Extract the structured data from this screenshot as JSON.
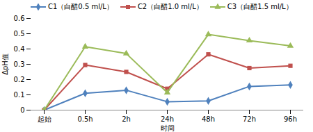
{
  "chart_data": {
    "type": "line",
    "x_label": "时间",
    "y_label": "ΔpH值",
    "categories": [
      "起始",
      "0.5h",
      "2h",
      "24h",
      "48h",
      "72h",
      "96h"
    ],
    "series": [
      {
        "name": "C1（白醋0.5 ml/L）",
        "color": "#4f81bd",
        "marker": "diamond",
        "values": [
          0,
          0.11,
          0.13,
          0.055,
          0.06,
          0.155,
          0.165
        ]
      },
      {
        "name": "C2（白醋1.0 ml/L）",
        "color": "#c0504d",
        "marker": "square",
        "values": [
          0,
          0.295,
          0.25,
          0.14,
          0.365,
          0.275,
          0.29
        ]
      },
      {
        "name": "C3（白醋1.5 ml/L）",
        "color": "#9bbb59",
        "marker": "triangle",
        "values": [
          0,
          0.415,
          0.37,
          0.115,
          0.495,
          0.455,
          0.42
        ]
      }
    ],
    "ylim": [
      0,
      0.6
    ],
    "yticks": [
      0,
      0.1,
      0.2,
      0.3,
      0.4,
      0.5,
      0.6
    ],
    "grid": false,
    "legend": "top-left"
  }
}
